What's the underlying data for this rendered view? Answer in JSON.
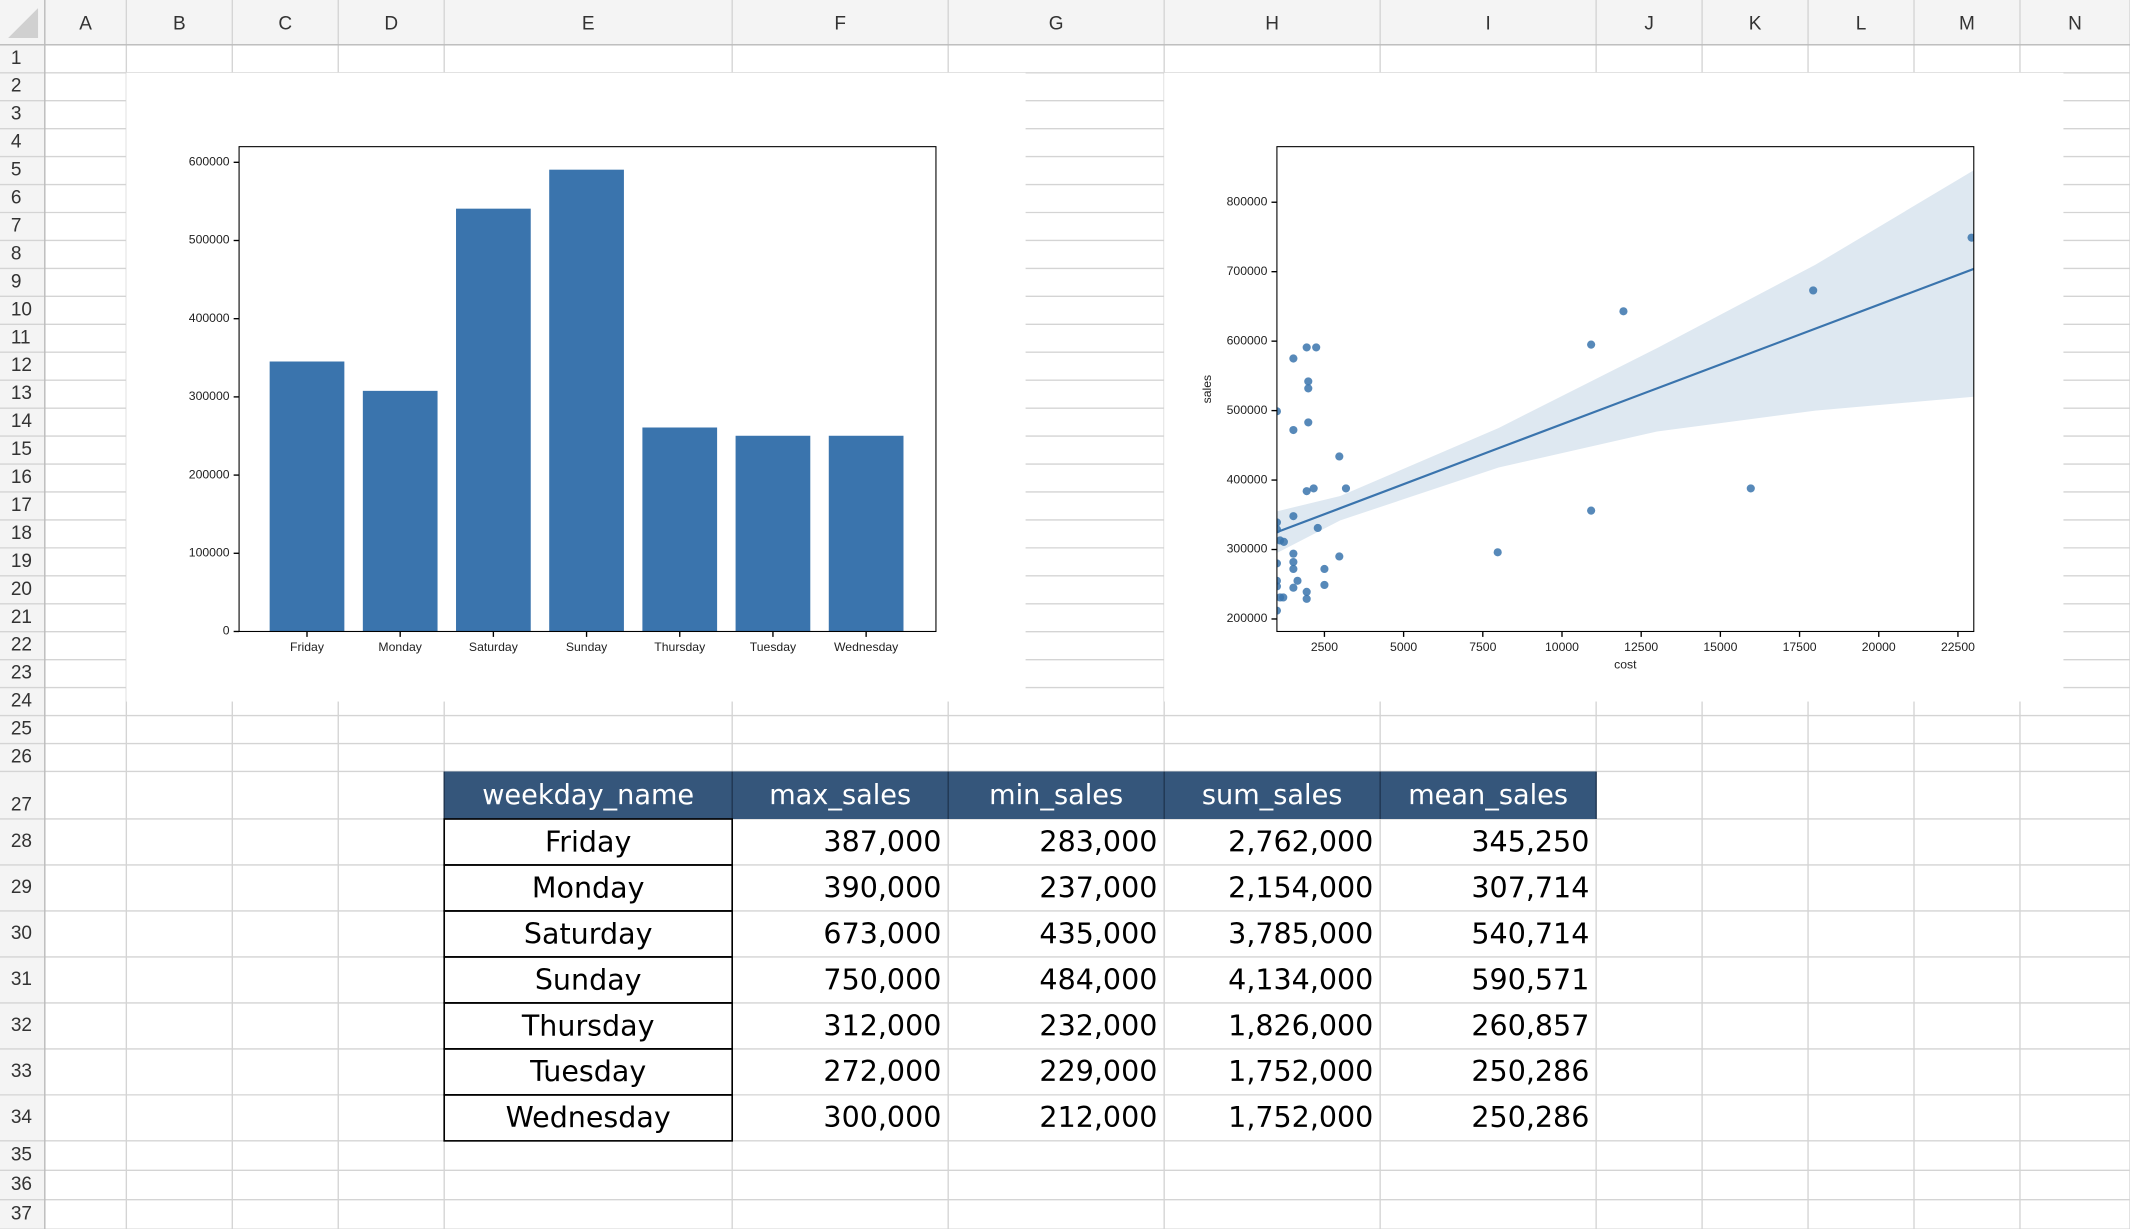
{
  "spreadsheet": {
    "columns": [
      "A",
      "B",
      "C",
      "D",
      "E",
      "F",
      "G",
      "H",
      "I",
      "J",
      "K",
      "L",
      "M",
      "N"
    ],
    "rows": [
      1,
      2,
      3,
      4,
      5,
      6,
      7,
      8,
      9,
      10,
      11,
      12,
      13,
      14,
      15,
      16,
      17,
      18,
      19,
      20,
      21,
      22,
      23,
      24,
      25,
      26,
      27,
      28,
      29,
      30,
      31,
      32,
      33,
      34,
      35,
      36,
      37
    ]
  },
  "chart_data": [
    {
      "type": "bar",
      "categories": [
        "Friday",
        "Monday",
        "Saturday",
        "Sunday",
        "Thursday",
        "Tuesday",
        "Wednesday"
      ],
      "values": [
        345250,
        307714,
        540714,
        590571,
        260857,
        250286,
        250286
      ],
      "color": "#3a74ad",
      "ylim": [
        0,
        620000
      ],
      "yticks": [
        0,
        100000,
        200000,
        300000,
        400000,
        500000,
        600000
      ]
    },
    {
      "type": "scatter",
      "x_label": "cost",
      "y_label": "sales",
      "color": "#3a74ad",
      "x": [
        1000,
        1000,
        1000,
        1100,
        1220,
        1000,
        1000,
        1000,
        1100,
        1200,
        1000,
        1520,
        1520,
        1520,
        1520,
        1520,
        1520,
        1650,
        1520,
        1940,
        2240,
        1990,
        1990,
        1990,
        1940,
        2160,
        2290,
        1940,
        1940,
        2500,
        2500,
        2970,
        3180,
        2970,
        7970,
        10920,
        10920,
        11940,
        15960,
        17930,
        22930
      ],
      "y": [
        499000,
        339000,
        329000,
        313000,
        311000,
        280000,
        255000,
        247000,
        231000,
        231000,
        212000,
        575000,
        472000,
        348000,
        294000,
        282000,
        272000,
        255000,
        245000,
        591000,
        591000,
        542000,
        532000,
        483000,
        384000,
        388000,
        331000,
        239000,
        229000,
        272000,
        249000,
        434000,
        388000,
        290000,
        296000,
        595000,
        356000,
        643000,
        388000,
        673000,
        749000
      ],
      "xlim": [
        1000,
        23000
      ],
      "ylim": [
        182000,
        880000
      ],
      "xticks": [
        2500,
        5000,
        7500,
        10000,
        12500,
        15000,
        17500,
        20000,
        22500
      ],
      "yticks": [
        200000,
        300000,
        400000,
        500000,
        600000,
        700000,
        800000
      ],
      "fit": {
        "x": [
          1000,
          3000,
          8000,
          13000,
          18000,
          23000
        ],
        "y": [
          325000,
          359500,
          446000,
          532000,
          618000,
          704000
        ],
        "lower": [
          295000,
          342000,
          418000,
          470000,
          500000,
          520000
        ],
        "upper": [
          355000,
          377000,
          475000,
          590000,
          710000,
          846000
        ],
        "color": "#3a74ad",
        "band_color": "#dee8f1"
      }
    }
  ],
  "table": {
    "header": [
      "weekday_name",
      "max_sales",
      "min_sales",
      "sum_sales",
      "mean_sales"
    ],
    "rows": [
      [
        "Friday",
        "387,000",
        "283,000",
        "2,762,000",
        "345,250"
      ],
      [
        "Monday",
        "390,000",
        "237,000",
        "2,154,000",
        "307,714"
      ],
      [
        "Saturday",
        "673,000",
        "435,000",
        "3,785,000",
        "540,714"
      ],
      [
        "Sunday",
        "750,000",
        "484,000",
        "4,134,000",
        "590,571"
      ],
      [
        "Thursday",
        "312,000",
        "232,000",
        "1,826,000",
        "260,857"
      ],
      [
        "Tuesday",
        "272,000",
        "229,000",
        "1,752,000",
        "250,286"
      ],
      [
        "Wednesday",
        "300,000",
        "212,000",
        "1,752,000",
        "250,286"
      ]
    ]
  }
}
